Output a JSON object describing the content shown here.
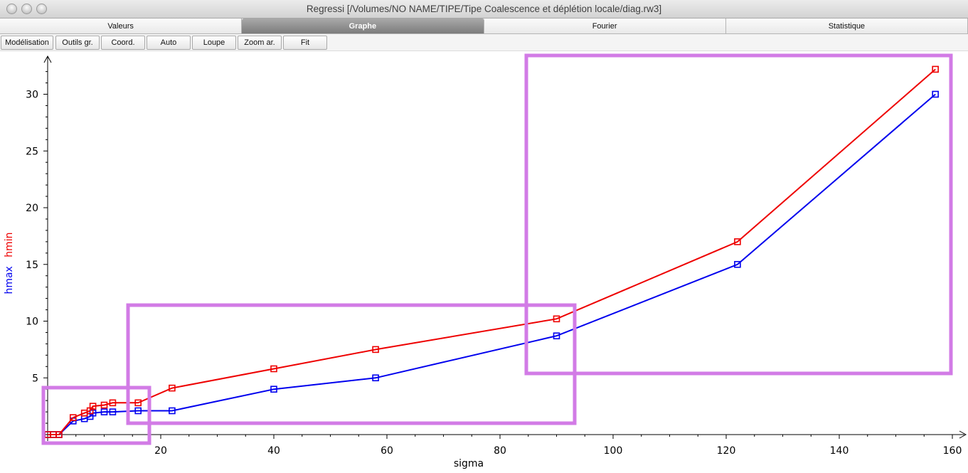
{
  "window": {
    "title": "Regressi [/Volumes/NO NAME/TIPE/Tipe Coalescence et déplétion locale/diag.rw3]"
  },
  "tabs": [
    {
      "label": "Valeurs",
      "active": false
    },
    {
      "label": "Graphe",
      "active": true
    },
    {
      "label": "Fourier",
      "active": false
    },
    {
      "label": "Statistique",
      "active": false
    }
  ],
  "toolbar": {
    "buttons": [
      "Modélisation",
      "Outils gr.",
      "Coord.",
      "Auto",
      "Loupe",
      "Zoom ar.",
      "Fit"
    ]
  },
  "colors": {
    "series_hmax": "#0000ee",
    "series_hmin": "#ee0000",
    "highlight": "#d27be6"
  },
  "chart_data": {
    "type": "line",
    "xlabel": "sigma",
    "ylabel": [
      "hmax",
      "hmin"
    ],
    "xlim": [
      -2,
      163
    ],
    "ylim": [
      0,
      33
    ],
    "x_ticks": [
      20,
      40,
      60,
      80,
      100,
      120,
      140,
      160
    ],
    "y_ticks": [
      5,
      10,
      15,
      20,
      25,
      30
    ],
    "marker": "square",
    "series": [
      {
        "name": "hmax",
        "color": "#0000ee",
        "x": [
          0,
          1,
          2,
          4.5,
          6.5,
          7.5,
          8,
          10,
          11.5,
          16,
          22,
          40,
          58,
          90,
          122,
          157
        ],
        "y": [
          0,
          0,
          0,
          1.2,
          1.4,
          1.6,
          1.9,
          2.0,
          2.0,
          2.1,
          2.1,
          4.0,
          5.0,
          8.7,
          15.0,
          30.0
        ]
      },
      {
        "name": "hmin",
        "color": "#ee0000",
        "x": [
          0,
          1,
          2,
          4.5,
          6.5,
          7.5,
          8,
          10,
          11.5,
          16,
          22,
          40,
          58,
          90,
          122,
          157
        ],
        "y": [
          0,
          0,
          0,
          1.5,
          1.9,
          2.1,
          2.5,
          2.6,
          2.8,
          2.8,
          4.1,
          5.8,
          7.5,
          10.2,
          17.0,
          32.2
        ]
      }
    ],
    "annotation_boxes": 3
  }
}
